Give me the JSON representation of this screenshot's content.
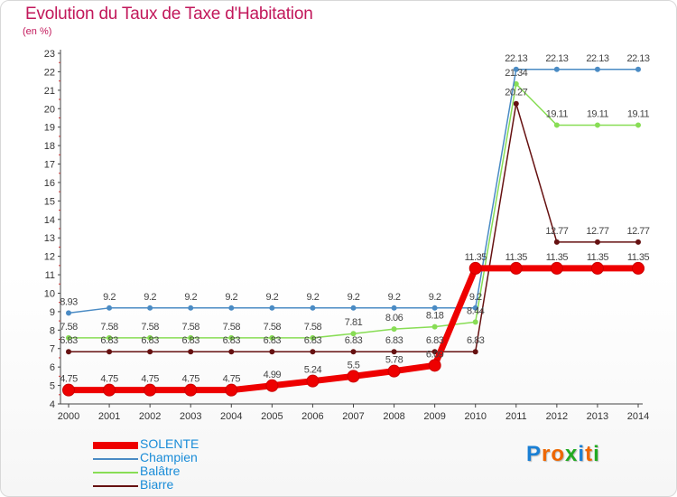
{
  "chart_data": {
    "type": "line",
    "title": "Evolution du Taux de Taxe d'Habitation",
    "subtitle": "(en %)",
    "x": [
      "2000",
      "2001",
      "2002",
      "2003",
      "2004",
      "2005",
      "2006",
      "2007",
      "2008",
      "2009",
      "2010",
      "2011",
      "2012",
      "2013",
      "2014"
    ],
    "ylim": [
      4,
      23
    ],
    "yticks": [
      4,
      5,
      6,
      7,
      8,
      9,
      10,
      11,
      12,
      13,
      14,
      15,
      16,
      17,
      18,
      19,
      20,
      21,
      22,
      23
    ],
    "series": [
      {
        "name": "SOLENTE",
        "color": "#ee0000",
        "values": [
          4.75,
          4.75,
          4.75,
          4.75,
          4.75,
          4.99,
          5.24,
          5.5,
          5.78,
          6.09,
          11.35,
          11.35,
          11.35,
          11.35,
          11.35
        ],
        "labels": [
          "4.75",
          "4.75",
          "4.75",
          "4.75",
          "4.75",
          "4.99",
          "5.24",
          "5.5",
          "5.78",
          "6.09",
          "11.35",
          "11.35",
          "11.35",
          "11.35",
          "11.35"
        ]
      },
      {
        "name": "Champien",
        "color": "#4a8bc4",
        "values": [
          8.93,
          9.2,
          9.2,
          9.2,
          9.2,
          9.2,
          9.2,
          9.2,
          9.2,
          9.2,
          9.2,
          22.13,
          22.13,
          22.13,
          22.13
        ],
        "labels": [
          "8.93",
          "9.2",
          "9.2",
          "9.2",
          "9.2",
          "9.2",
          "9.2",
          "9.2",
          "9.2",
          "9.2",
          "9.2",
          "22.13",
          "22.13",
          "22.13",
          "22.13"
        ]
      },
      {
        "name": "Balâtre",
        "color": "#88dd55",
        "values": [
          7.58,
          7.58,
          7.58,
          7.58,
          7.58,
          7.58,
          7.58,
          7.81,
          8.06,
          8.18,
          8.44,
          21.34,
          19.11,
          19.11,
          19.11
        ],
        "labels": [
          "7.58",
          "7.58",
          "7.58",
          "7.58",
          "7.58",
          "7.58",
          "7.58",
          "7.81",
          "8.06",
          "8.18",
          "8.44",
          "21.34",
          "19.11",
          "19.11",
          "19.11"
        ]
      },
      {
        "name": "Biarre",
        "color": "#661111",
        "values": [
          6.83,
          6.83,
          6.83,
          6.83,
          6.83,
          6.83,
          6.83,
          6.83,
          6.83,
          6.83,
          6.83,
          20.27,
          12.77,
          12.77,
          12.77
        ],
        "labels": [
          "6.83",
          "6.83",
          "6.83",
          "6.83",
          "6.83",
          "6.83",
          "6.83",
          "6.83",
          "6.83",
          "6.83",
          "6.83",
          "20.27",
          "12.77",
          "12.77",
          "12.77"
        ]
      }
    ],
    "grid": false,
    "legend_position": "bottom-left"
  },
  "branding": {
    "text": "Proxiti",
    "letters": [
      "P",
      "r",
      "o",
      "x",
      "i",
      "t",
      "i"
    ],
    "colors": [
      "#1a7fd4",
      "#ee6600",
      "#ee6600",
      "#22aa22",
      "#1a7fd4",
      "#ee6600",
      "#22aa22"
    ]
  }
}
